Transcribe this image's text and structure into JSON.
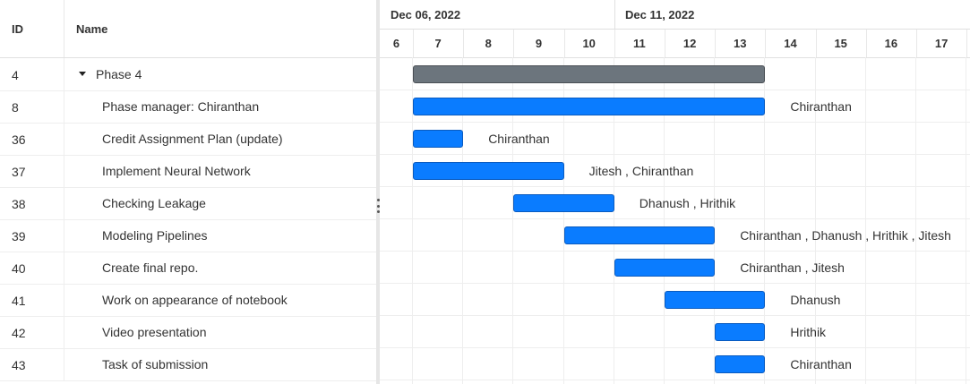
{
  "grid": {
    "headers": {
      "id": "ID",
      "name": "Name"
    },
    "rows": [
      {
        "id": "4",
        "name": "Phase 4",
        "summary": true
      },
      {
        "id": "8",
        "name": "Phase manager: Chiranthan"
      },
      {
        "id": "36",
        "name": "Credit Assignment Plan (update)"
      },
      {
        "id": "37",
        "name": "Implement Neural Network"
      },
      {
        "id": "38",
        "name": "Checking Leakage"
      },
      {
        "id": "39",
        "name": "Modeling Pipelines"
      },
      {
        "id": "40",
        "name": "Create final repo."
      },
      {
        "id": "41",
        "name": "Work on appearance of notebook"
      },
      {
        "id": "42",
        "name": "Video presentation"
      },
      {
        "id": "43",
        "name": "Task of submission"
      }
    ]
  },
  "timeline": {
    "weeks": [
      "Dec 06, 2022",
      "Dec 11, 2022"
    ],
    "days": [
      "6",
      "7",
      "8",
      "9",
      "10",
      "11",
      "12",
      "13",
      "14",
      "15",
      "16",
      "17"
    ]
  },
  "tasks": [
    {
      "row": 0,
      "start_day": 7,
      "end_day": 13,
      "summary": true,
      "label": ""
    },
    {
      "row": 1,
      "start_day": 7,
      "end_day": 13,
      "summary": false,
      "label": "Chiranthan"
    },
    {
      "row": 2,
      "start_day": 7,
      "end_day": 7,
      "summary": false,
      "label": "Chiranthan"
    },
    {
      "row": 3,
      "start_day": 7,
      "end_day": 9,
      "summary": false,
      "label": "Jitesh , Chiranthan"
    },
    {
      "row": 4,
      "start_day": 9,
      "end_day": 10,
      "summary": false,
      "label": "Dhanush , Hrithik"
    },
    {
      "row": 5,
      "start_day": 10,
      "end_day": 12,
      "summary": false,
      "label": "Chiranthan , Dhanush , Hrithik , Jitesh"
    },
    {
      "row": 6,
      "start_day": 11,
      "end_day": 12,
      "summary": false,
      "label": "Chiranthan , Jitesh"
    },
    {
      "row": 7,
      "start_day": 12,
      "end_day": 13,
      "summary": false,
      "label": "Dhanush"
    },
    {
      "row": 8,
      "start_day": 13,
      "end_day": 13,
      "summary": false,
      "label": "Hrithik"
    },
    {
      "row": 9,
      "start_day": 13,
      "end_day": 13,
      "summary": false,
      "label": "Chiranthan"
    }
  ],
  "colors": {
    "task_bar": "#0a7cff",
    "summary_bar": "#6c757d",
    "grid_line": "#eeeeee"
  }
}
